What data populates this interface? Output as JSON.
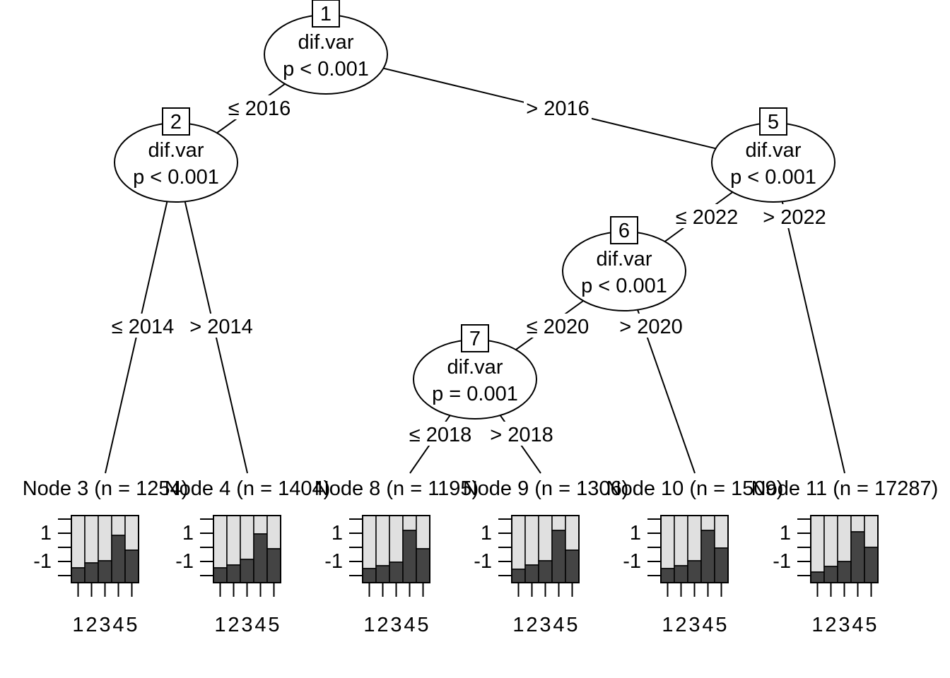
{
  "inner_nodes": [
    {
      "id": "1",
      "variable": "dif.var",
      "pvalue": "p < 0.001"
    },
    {
      "id": "2",
      "variable": "dif.var",
      "pvalue": "p < 0.001"
    },
    {
      "id": "5",
      "variable": "dif.var",
      "pvalue": "p < 0.001"
    },
    {
      "id": "6",
      "variable": "dif.var",
      "pvalue": "p < 0.001"
    },
    {
      "id": "7",
      "variable": "dif.var",
      "pvalue": "p = 0.001"
    }
  ],
  "edges": [
    {
      "from": "1",
      "to": "2",
      "label": "≤ 2016"
    },
    {
      "from": "1",
      "to": "5",
      "label": "> 2016"
    },
    {
      "from": "2",
      "to": "3",
      "label": "≤ 2014"
    },
    {
      "from": "2",
      "to": "4",
      "label": "> 2014"
    },
    {
      "from": "5",
      "to": "6",
      "label": "≤ 2022"
    },
    {
      "from": "5",
      "to": "11",
      "label": "> 2022"
    },
    {
      "from": "6",
      "to": "7",
      "label": "≤ 2020"
    },
    {
      "from": "6",
      "to": "10",
      "label": "> 2020"
    },
    {
      "from": "7",
      "to": "8",
      "label": "≤ 2018"
    },
    {
      "from": "7",
      "to": "9",
      "label": "> 2018"
    }
  ],
  "terminal_nodes": [
    {
      "id": "3",
      "label": "Node 3 (n = 1254)"
    },
    {
      "id": "4",
      "label": "Node 4 (n = 1404)"
    },
    {
      "id": "8",
      "label": "Node 8 (n = 1195)"
    },
    {
      "id": "9",
      "label": "Node 9 (n = 1306)"
    },
    {
      "id": "10",
      "label": "Node 10 (n = 1509)"
    },
    {
      "id": "11",
      "label": "Node 11 (n = 17287)"
    }
  ],
  "chart_data": {
    "type": "bar",
    "stacked": true,
    "categories": [
      "1",
      "2",
      "3",
      "4",
      "5"
    ],
    "y_tick_labels": [
      "1",
      "-1"
    ],
    "y_ticks": [
      -2,
      -1,
      0,
      1,
      2
    ],
    "ylim": [
      -2.5,
      2.25
    ],
    "colors": {
      "dark": "#444444",
      "light": "#e0e0e0"
    },
    "panels": [
      {
        "node": "3",
        "dark_values": [
          -1.45,
          -1.1,
          -0.95,
          0.85,
          -0.2
        ]
      },
      {
        "node": "4",
        "dark_values": [
          -1.45,
          -1.25,
          -0.85,
          0.95,
          -0.1
        ]
      },
      {
        "node": "8",
        "dark_values": [
          -1.5,
          -1.3,
          -1.05,
          1.2,
          -0.1
        ]
      },
      {
        "node": "9",
        "dark_values": [
          -1.55,
          -1.25,
          -0.95,
          1.2,
          -0.2
        ]
      },
      {
        "node": "10",
        "dark_values": [
          -1.5,
          -1.3,
          -0.95,
          1.2,
          -0.05
        ]
      },
      {
        "node": "11",
        "dark_values": [
          -1.75,
          -1.35,
          -1.0,
          1.1,
          0.0
        ]
      }
    ]
  }
}
